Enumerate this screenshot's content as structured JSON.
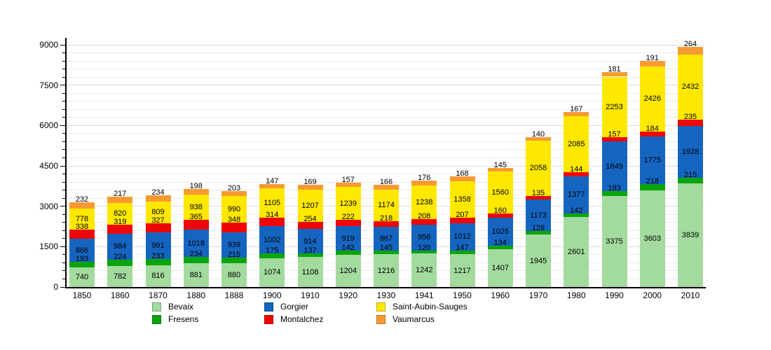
{
  "chart_data": {
    "type": "bar",
    "stacked": true,
    "title": "",
    "xlabel": "",
    "ylabel": "",
    "ylim": [
      0,
      9000
    ],
    "yticks": [
      0,
      1500,
      3000,
      4500,
      6000,
      7500,
      9000
    ],
    "minor_tick_step": 300,
    "grid": true,
    "legend_position": "bottom",
    "categories": [
      "1850",
      "1860",
      "1870",
      "1880",
      "1888",
      "1900",
      "1910",
      "1920",
      "1930",
      "1941",
      "1950",
      "1960",
      "1970",
      "1980",
      "1990",
      "2000",
      "2010"
    ],
    "series": [
      {
        "name": "Bevaix",
        "color": "#A3DA9E",
        "values": [
          740,
          782,
          816,
          881,
          880,
          1074,
          1108,
          1204,
          1216,
          1242,
          1217,
          1407,
          1945,
          2601,
          3375,
          3603,
          3839
        ]
      },
      {
        "name": "Fresens",
        "color": "#0AA50A",
        "values": [
          193,
          224,
          233,
          234,
          215,
          175,
          137,
          142,
          145,
          120,
          147,
          134,
          128,
          142,
          183,
          218,
          215
        ]
      },
      {
        "name": "Gorgier",
        "color": "#1565C0",
        "values": [
          866,
          984,
          991,
          1018,
          939,
          1002,
          914,
          919,
          867,
          958,
          1012,
          1025,
          1173,
          1377,
          1849,
          1775,
          1928
        ]
      },
      {
        "name": "Montalchez",
        "color": "#EE0505",
        "values": [
          338,
          319,
          327,
          365,
          348,
          314,
          254,
          222,
          218,
          208,
          207,
          160,
          135,
          144,
          157,
          184,
          235
        ]
      },
      {
        "name": "Saint-Aubin-Sauges",
        "color": "#FFE800",
        "values": [
          778,
          820,
          809,
          938,
          990,
          1105,
          1207,
          1239,
          1174,
          1238,
          1358,
          1560,
          2058,
          2085,
          2253,
          2426,
          2432
        ]
      },
      {
        "name": "Vaumarcus",
        "color": "#F79A32",
        "values": [
          232,
          217,
          234,
          198,
          203,
          147,
          169,
          157,
          166,
          176,
          168,
          145,
          140,
          167,
          181,
          191,
          264
        ]
      }
    ],
    "colors": {
      "axis": "#000000",
      "grid_minor": "#eaeaea",
      "grid_major": "#d9d9d9",
      "label_text": "#000000",
      "background": "#ffffff"
    }
  },
  "legend": {
    "items": [
      {
        "label": "Bevaix",
        "swatch": "bevaix-swatch"
      },
      {
        "label": "Fresens",
        "swatch": "fresens-swatch"
      },
      {
        "label": "Gorgier",
        "swatch": "gorgier-swatch"
      },
      {
        "label": "Montalchez",
        "swatch": "montalchez-swatch"
      },
      {
        "label": "Saint-Aubin-Sauges",
        "swatch": "saint-aubin-sauges-swatch"
      },
      {
        "label": "Vaumarcus",
        "swatch": "vaumarcus-swatch"
      }
    ]
  }
}
